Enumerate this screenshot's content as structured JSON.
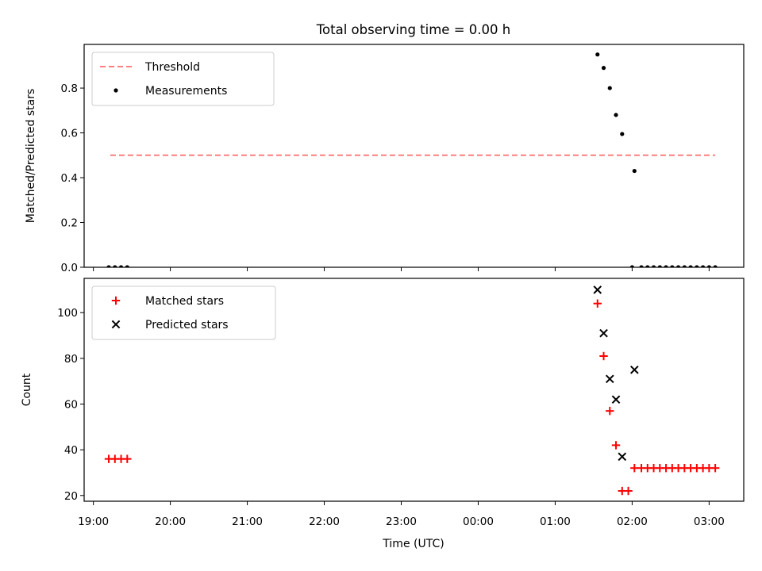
{
  "chart_data": {
    "title": "Total observing time = 0.00 h",
    "xlabel": "Time (UTC)",
    "x_tick_labels": [
      "19:00",
      "20:00",
      "21:00",
      "22:00",
      "23:00",
      "00:00",
      "01:00",
      "02:00",
      "03:00"
    ],
    "x_tick_hours": [
      0,
      1,
      2,
      3,
      4,
      5,
      6,
      7,
      8
    ],
    "xlim_hours": [
      -0.12,
      8.45
    ],
    "x_hours_origin_label": "19:00",
    "panels": [
      {
        "type": "scatter",
        "ylabel": "Matched/Predicted stars",
        "ylim": [
          0,
          0.995
        ],
        "y_ticks": [
          0,
          0.2,
          0.4,
          0.6,
          0.8
        ],
        "y_tick_labels": [
          "0.0",
          "0.2",
          "0.4",
          "0.6",
          "0.8"
        ],
        "legend_position": "upper-left",
        "threshold": {
          "name": "Threshold",
          "y": 0.5,
          "x_hours": [
            0.22,
            8.08
          ],
          "color": "#ff7f7f",
          "style": "dashed"
        },
        "series": [
          {
            "name": "Measurements",
            "marker": "dot",
            "color": "#000000",
            "x_hours": [
              0.2,
              0.28,
              0.36,
              0.44,
              6.55,
              6.63,
              6.71,
              6.79,
              6.87,
              7.03,
              7.0,
              7.12,
              7.2,
              7.28,
              7.36,
              7.44,
              7.52,
              7.6,
              7.68,
              7.76,
              7.84,
              7.92,
              8.0,
              8.08
            ],
            "y": [
              0,
              0,
              0,
              0,
              0.95,
              0.89,
              0.8,
              0.68,
              0.595,
              0.43,
              0,
              0,
              0,
              0,
              0,
              0,
              0,
              0,
              0,
              0,
              0,
              0,
              0,
              0
            ]
          }
        ]
      },
      {
        "type": "scatter",
        "ylabel": "Count",
        "ylim": [
          17.5,
          115
        ],
        "y_ticks": [
          20,
          40,
          60,
          80,
          100
        ],
        "y_tick_labels": [
          "20",
          "40",
          "60",
          "80",
          "100"
        ],
        "legend_position": "upper-left",
        "series": [
          {
            "name": "Matched stars",
            "marker": "plus",
            "color": "#ff0000",
            "x_hours": [
              0.2,
              0.28,
              0.36,
              0.44,
              6.55,
              6.63,
              6.71,
              6.79,
              6.87,
              6.95,
              7.03,
              7.12,
              7.2,
              7.28,
              7.36,
              7.44,
              7.52,
              7.6,
              7.68,
              7.76,
              7.84,
              7.92,
              8.0,
              8.08
            ],
            "y": [
              36,
              36,
              36,
              36,
              104,
              81,
              57,
              42,
              22,
              22,
              32,
              32,
              32,
              32,
              32,
              32,
              32,
              32,
              32,
              32,
              32,
              32,
              32,
              32
            ]
          },
          {
            "name": "Predicted stars",
            "marker": "x",
            "color": "#000000",
            "x_hours": [
              6.55,
              6.63,
              6.71,
              6.79,
              6.87,
              7.03
            ],
            "y": [
              110,
              91,
              71,
              62,
              37,
              75
            ]
          }
        ]
      }
    ]
  }
}
